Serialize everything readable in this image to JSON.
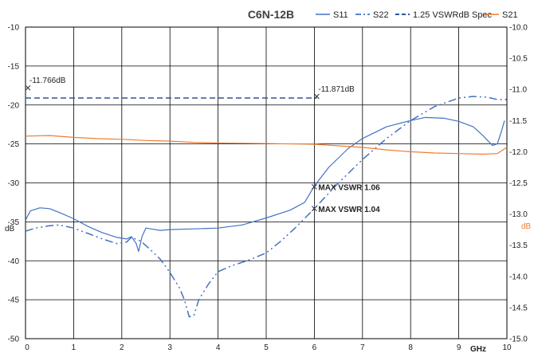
{
  "chart_data": {
    "type": "line",
    "title": "C6N-12B",
    "xlabel": "GHz",
    "ylabel_left": "dB",
    "ylabel_right": "dB",
    "xlim": [
      0,
      10
    ],
    "ylim_left": [
      -50,
      -10
    ],
    "ylim_right": [
      -15.0,
      -10.0
    ],
    "x_ticks": [
      "0",
      "1",
      "2",
      "3",
      "4",
      "5",
      "6",
      "7",
      "8",
      "9",
      "10"
    ],
    "y_left_ticks": [
      "-10",
      "-15",
      "-20",
      "-25",
      "-30",
      "-35",
      "-40",
      "-45",
      "-50"
    ],
    "y_right_ticks": [
      "-10.0",
      "-10.5",
      "-11.0",
      "-11.5",
      "-12.0",
      "-12.5",
      "-13.0",
      "-13.5",
      "-14.0",
      "-14.5",
      "-15.0"
    ],
    "grid": true,
    "legend_position": "top",
    "colors": {
      "blue": "#4472C4",
      "orange": "#ED7D31",
      "dark_blue": "#2F5597"
    },
    "series": [
      {
        "name": "S11",
        "axis": "left",
        "points": [
          [
            0,
            -34.8
          ],
          [
            0.1,
            -33.6
          ],
          [
            0.3,
            -33.2
          ],
          [
            0.5,
            -33.3
          ],
          [
            0.7,
            -33.8
          ],
          [
            1.0,
            -34.6
          ],
          [
            1.3,
            -35.6
          ],
          [
            1.6,
            -36.4
          ],
          [
            1.9,
            -37.0
          ],
          [
            2.1,
            -37.2
          ],
          [
            2.2,
            -36.9
          ],
          [
            2.3,
            -37.8
          ],
          [
            2.35,
            -38.8
          ],
          [
            2.42,
            -36.9
          ],
          [
            2.5,
            -35.8
          ],
          [
            2.6,
            -35.9
          ],
          [
            2.8,
            -36.1
          ],
          [
            3.0,
            -36.0
          ],
          [
            3.5,
            -35.9
          ],
          [
            4.0,
            -35.8
          ],
          [
            4.5,
            -35.4
          ],
          [
            5.0,
            -34.5
          ],
          [
            5.5,
            -33.5
          ],
          [
            5.8,
            -32.5
          ],
          [
            6.0,
            -30.4
          ],
          [
            6.3,
            -28.0
          ],
          [
            6.7,
            -25.6
          ],
          [
            7.0,
            -24.3
          ],
          [
            7.5,
            -22.8
          ],
          [
            8.0,
            -22.0
          ],
          [
            8.3,
            -21.6
          ],
          [
            8.7,
            -21.7
          ],
          [
            9.0,
            -22.1
          ],
          [
            9.3,
            -22.8
          ],
          [
            9.5,
            -23.9
          ],
          [
            9.7,
            -25.2
          ],
          [
            9.8,
            -25.0
          ],
          [
            9.88,
            -23.5
          ],
          [
            9.95,
            -22.0
          ]
        ]
      },
      {
        "name": "S22",
        "axis": "left",
        "points": [
          [
            0,
            -36.2
          ],
          [
            0.2,
            -35.8
          ],
          [
            0.5,
            -35.5
          ],
          [
            0.7,
            -35.4
          ],
          [
            1.0,
            -35.8
          ],
          [
            1.3,
            -36.5
          ],
          [
            1.6,
            -37.2
          ],
          [
            1.9,
            -37.8
          ],
          [
            2.1,
            -37.6
          ],
          [
            2.2,
            -37.0
          ],
          [
            2.4,
            -37.5
          ],
          [
            2.6,
            -38.6
          ],
          [
            2.8,
            -39.8
          ],
          [
            3.0,
            -41.5
          ],
          [
            3.2,
            -43.5
          ],
          [
            3.3,
            -45.0
          ],
          [
            3.4,
            -47.2
          ],
          [
            3.5,
            -47.0
          ],
          [
            3.6,
            -45.0
          ],
          [
            3.8,
            -43.0
          ],
          [
            4.0,
            -41.4
          ],
          [
            4.3,
            -40.6
          ],
          [
            4.6,
            -40.0
          ],
          [
            5.0,
            -39.0
          ],
          [
            5.3,
            -37.5
          ],
          [
            5.6,
            -35.8
          ],
          [
            6.0,
            -33.3
          ],
          [
            6.5,
            -30.0
          ],
          [
            7.0,
            -27.0
          ],
          [
            7.5,
            -24.3
          ],
          [
            8.0,
            -22.0
          ],
          [
            8.5,
            -20.2
          ],
          [
            9.0,
            -19.1
          ],
          [
            9.3,
            -18.9
          ],
          [
            9.6,
            -19.0
          ],
          [
            9.8,
            -19.3
          ],
          [
            10,
            -19.3
          ]
        ]
      },
      {
        "name": "1.25 VSWRdB Spec",
        "axis": "left",
        "points": [
          [
            0,
            -19.1
          ],
          [
            6.05,
            -19.1
          ]
        ]
      },
      {
        "name": "S21",
        "axis": "right",
        "points": [
          [
            0,
            -11.75
          ],
          [
            0.5,
            -11.74
          ],
          [
            1.0,
            -11.77
          ],
          [
            1.5,
            -11.79
          ],
          [
            2.0,
            -11.8
          ],
          [
            2.5,
            -11.82
          ],
          [
            3.0,
            -11.83
          ],
          [
            3.5,
            -11.85
          ],
          [
            4.0,
            -11.86
          ],
          [
            5.0,
            -11.87
          ],
          [
            6.0,
            -11.88
          ],
          [
            7.0,
            -11.93
          ],
          [
            7.5,
            -11.97
          ],
          [
            8.0,
            -12.0
          ],
          [
            8.5,
            -12.02
          ],
          [
            9.0,
            -12.03
          ],
          [
            9.5,
            -12.04
          ],
          [
            9.8,
            -12.03
          ],
          [
            10,
            -11.93
          ]
        ]
      }
    ],
    "annotations": [
      {
        "label": "-11.766dB",
        "x": 0.05,
        "y": -17.8,
        "axis": "left"
      },
      {
        "label": "-11.871dB",
        "x": 6.05,
        "y": -18.9,
        "axis": "left"
      },
      {
        "label": "MAX VSWR 1.06",
        "x": 6.0,
        "y": -30.5,
        "axis": "left"
      },
      {
        "label": "MAX VSWR 1.04",
        "x": 6.0,
        "y": -33.3,
        "axis": "left"
      }
    ]
  }
}
